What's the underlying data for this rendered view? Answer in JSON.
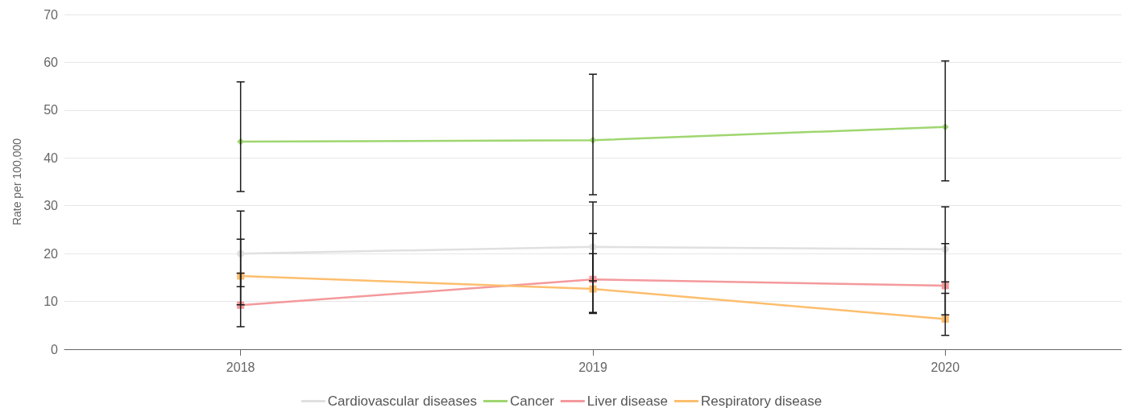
{
  "chart_data": {
    "type": "line",
    "ylabel": "Rate per 100,000",
    "categories": [
      "2018",
      "2019",
      "2020"
    ],
    "series": [
      {
        "name": "Cardiovascular diseases",
        "color": "#e0e0e0",
        "marker": "circle",
        "values": [
          20.0,
          21.4,
          20.9
        ],
        "errors": [
          [
            13.1,
            28.9
          ],
          [
            14.3,
            30.8
          ],
          [
            14.1,
            29.8
          ]
        ]
      },
      {
        "name": "Cancer",
        "color": "#9fd66f",
        "marker": "diamond",
        "values": [
          43.4,
          43.7,
          46.5
        ],
        "errors": [
          [
            33.0,
            55.9
          ],
          [
            32.3,
            57.5
          ],
          [
            35.2,
            60.3
          ]
        ]
      },
      {
        "name": "Liver disease",
        "color": "#f4999c",
        "marker": "square",
        "values": [
          9.2,
          14.6,
          13.3
        ],
        "errors": [
          [
            4.7,
            15.9
          ],
          [
            7.7,
            24.2
          ],
          [
            7.2,
            22.1
          ]
        ]
      },
      {
        "name": "Respiratory disease",
        "color": "#fdbe6e",
        "marker": "square",
        "values": [
          15.3,
          12.6,
          6.3
        ],
        "errors": [
          [
            9.3,
            23.0
          ],
          [
            7.5,
            20.0
          ],
          [
            2.9,
            11.7
          ]
        ]
      }
    ],
    "ylim": [
      0,
      70
    ],
    "yticks": [
      0,
      10,
      20,
      30,
      40,
      50,
      60,
      70
    ],
    "grid": "y",
    "legend": "bottom",
    "line_style": "solid"
  }
}
